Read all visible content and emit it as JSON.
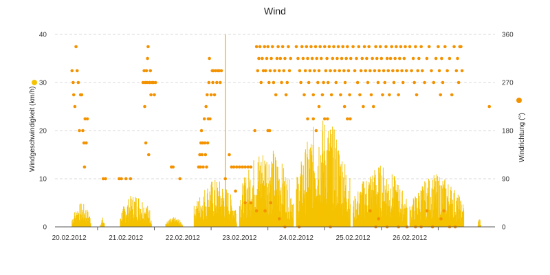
{
  "chart_data": {
    "type": "bar+scatter",
    "title": "Wind",
    "x_categories": [
      "20.02.2012",
      "21.02.2012",
      "22.02.2012",
      "23.02.2012",
      "24.02.2012",
      "25.02.2012",
      "26.02.2012"
    ],
    "x_range_days": [
      19.75,
      27.5
    ],
    "y_left": {
      "label": "Windgeschwindigkeit (km/h)",
      "ylim": [
        0,
        40
      ],
      "ticks": [
        "0",
        "10",
        "20",
        "30",
        "40"
      ],
      "color": "#f5c200"
    },
    "y_right": {
      "label": "Windrichtung (°)",
      "ylim": [
        0,
        360
      ],
      "ticks": [
        "0",
        "90",
        "180",
        "270",
        "360"
      ],
      "color": "#f39200"
    },
    "series": [
      {
        "name": "Windgeschwindigkeit",
        "type": "bar",
        "axis": "left",
        "color": "#f5c200",
        "note": "dense half-hourly gust bars; approximate daily envelopes",
        "segments": [
          {
            "start": 20.05,
            "end": 20.38,
            "max": 5
          },
          {
            "start": 20.55,
            "end": 20.62,
            "max": 2
          },
          {
            "start": 20.9,
            "end": 21.45,
            "max": 7
          },
          {
            "start": 21.7,
            "end": 22.0,
            "max": 2
          },
          {
            "start": 22.2,
            "end": 22.95,
            "max": 10
          },
          {
            "start": 23.0,
            "end": 23.95,
            "max": 17
          },
          {
            "start": 24.0,
            "end": 24.95,
            "max": 23
          },
          {
            "start": 25.0,
            "end": 25.95,
            "max": 13
          },
          {
            "start": 26.0,
            "end": 26.95,
            "max": 11
          },
          {
            "start": 27.2,
            "end": 27.25,
            "max": 2
          }
        ],
        "spike": {
          "x": 22.75,
          "value": 40
        }
      },
      {
        "name": "Windrichtung",
        "type": "scatter",
        "axis": "right",
        "color": "#f39200",
        "note": "wind direction samples, quantised to ~22.5° steps",
        "points": [
          [
            20.05,
            292
          ],
          [
            20.07,
            270
          ],
          [
            20.08,
            247
          ],
          [
            20.1,
            225
          ],
          [
            20.12,
            337
          ],
          [
            20.14,
            292
          ],
          [
            20.16,
            270
          ],
          [
            20.18,
            180
          ],
          [
            20.2,
            247
          ],
          [
            20.22,
            247
          ],
          [
            20.24,
            180
          ],
          [
            20.26,
            157
          ],
          [
            20.27,
            112
          ],
          [
            20.28,
            202
          ],
          [
            20.3,
            157
          ],
          [
            20.32,
            202
          ],
          [
            20.6,
            90
          ],
          [
            20.64,
            90
          ],
          [
            20.88,
            90
          ],
          [
            20.92,
            90
          ],
          [
            21.0,
            90
          ],
          [
            21.08,
            90
          ],
          [
            21.3,
            270
          ],
          [
            21.32,
            292
          ],
          [
            21.33,
            225
          ],
          [
            21.34,
            270
          ],
          [
            21.35,
            157
          ],
          [
            21.36,
            292
          ],
          [
            21.37,
            270
          ],
          [
            21.38,
            315
          ],
          [
            21.39,
            337
          ],
          [
            21.4,
            135
          ],
          [
            21.41,
            270
          ],
          [
            21.42,
            270
          ],
          [
            21.43,
            292
          ],
          [
            21.44,
            247
          ],
          [
            21.46,
            270
          ],
          [
            21.48,
            270
          ],
          [
            21.5,
            247
          ],
          [
            21.52,
            270
          ],
          [
            21.8,
            112
          ],
          [
            21.83,
            112
          ],
          [
            21.95,
            90
          ],
          [
            22.28,
            112
          ],
          [
            22.3,
            135
          ],
          [
            22.31,
            112
          ],
          [
            22.32,
            157
          ],
          [
            22.33,
            180
          ],
          [
            22.34,
            135
          ],
          [
            22.35,
            157
          ],
          [
            22.36,
            112
          ],
          [
            22.38,
            202
          ],
          [
            22.39,
            157
          ],
          [
            22.4,
            135
          ],
          [
            22.41,
            225
          ],
          [
            22.42,
            112
          ],
          [
            22.43,
            247
          ],
          [
            22.44,
            157
          ],
          [
            22.45,
            202
          ],
          [
            22.46,
            270
          ],
          [
            22.47,
            315
          ],
          [
            22.48,
            202
          ],
          [
            22.5,
            247
          ],
          [
            22.52,
            292
          ],
          [
            22.53,
            270
          ],
          [
            22.54,
            292
          ],
          [
            22.56,
            247
          ],
          [
            22.58,
            292
          ],
          [
            22.6,
            270
          ],
          [
            22.62,
            292
          ],
          [
            22.64,
            292
          ],
          [
            22.66,
            270
          ],
          [
            22.68,
            292
          ],
          [
            22.75,
            90
          ],
          [
            22.82,
            135
          ],
          [
            22.86,
            112
          ],
          [
            22.9,
            112
          ],
          [
            22.93,
            67
          ],
          [
            22.95,
            112
          ],
          [
            23.0,
            112
          ],
          [
            23.05,
            112
          ],
          [
            23.1,
            112
          ],
          [
            23.15,
            112
          ],
          [
            23.2,
            112
          ],
          [
            23.27,
            180
          ],
          [
            23.1,
            45
          ],
          [
            23.2,
            45
          ],
          [
            23.3,
            30
          ],
          [
            23.45,
            30
          ],
          [
            23.55,
            45
          ],
          [
            23.7,
            15
          ],
          [
            23.8,
            0
          ],
          [
            24.05,
            0
          ],
          [
            23.3,
            337
          ],
          [
            23.32,
            292
          ],
          [
            23.34,
            315
          ],
          [
            23.36,
            337
          ],
          [
            23.38,
            270
          ],
          [
            23.4,
            315
          ],
          [
            23.42,
            292
          ],
          [
            23.44,
            337
          ],
          [
            23.46,
            292
          ],
          [
            23.48,
            315
          ],
          [
            23.5,
            337
          ],
          [
            23.52,
            270
          ],
          [
            23.54,
            292
          ],
          [
            23.56,
            315
          ],
          [
            23.58,
            337
          ],
          [
            23.6,
            270
          ],
          [
            23.62,
            292
          ],
          [
            23.64,
            247
          ],
          [
            23.66,
            315
          ],
          [
            23.68,
            337
          ],
          [
            23.7,
            292
          ],
          [
            23.72,
            315
          ],
          [
            23.74,
            270
          ],
          [
            23.76,
            337
          ],
          [
            23.78,
            292
          ],
          [
            23.8,
            315
          ],
          [
            23.82,
            247
          ],
          [
            23.84,
            270
          ],
          [
            23.86,
            337
          ],
          [
            23.88,
            292
          ],
          [
            23.9,
            315
          ],
          [
            23.5,
            180
          ],
          [
            23.53,
            180
          ],
          [
            24.0,
            337
          ],
          [
            24.03,
            315
          ],
          [
            24.06,
            292
          ],
          [
            24.08,
            270
          ],
          [
            24.1,
            337
          ],
          [
            24.12,
            315
          ],
          [
            24.14,
            247
          ],
          [
            24.16,
            292
          ],
          [
            24.18,
            337
          ],
          [
            24.2,
            315
          ],
          [
            24.22,
            270
          ],
          [
            24.24,
            292
          ],
          [
            24.26,
            337
          ],
          [
            24.28,
            315
          ],
          [
            24.3,
            247
          ],
          [
            24.32,
            292
          ],
          [
            24.34,
            337
          ],
          [
            24.36,
            315
          ],
          [
            24.38,
            270
          ],
          [
            24.4,
            292
          ],
          [
            24.42,
            337
          ],
          [
            24.44,
            315
          ],
          [
            24.46,
            247
          ],
          [
            24.48,
            270
          ],
          [
            24.5,
            337
          ],
          [
            24.52,
            292
          ],
          [
            24.54,
            315
          ],
          [
            24.56,
            270
          ],
          [
            24.58,
            337
          ],
          [
            24.6,
            292
          ],
          [
            24.62,
            247
          ],
          [
            24.64,
            315
          ],
          [
            24.66,
            337
          ],
          [
            24.68,
            292
          ],
          [
            24.7,
            270
          ],
          [
            24.72,
            315
          ],
          [
            24.74,
            337
          ],
          [
            24.76,
            292
          ],
          [
            24.78,
            247
          ],
          [
            24.8,
            315
          ],
          [
            24.82,
            337
          ],
          [
            24.84,
            292
          ],
          [
            24.86,
            270
          ],
          [
            24.88,
            315
          ],
          [
            24.9,
            337
          ],
          [
            24.92,
            292
          ],
          [
            24.94,
            247
          ],
          [
            24.96,
            315
          ],
          [
            24.2,
            202
          ],
          [
            24.3,
            202
          ],
          [
            24.35,
            180
          ],
          [
            24.4,
            225
          ],
          [
            24.5,
            202
          ],
          [
            24.55,
            202
          ],
          [
            24.6,
            0
          ],
          [
            24.85,
            225
          ],
          [
            24.9,
            202
          ],
          [
            24.95,
            202
          ],
          [
            25.0,
            337
          ],
          [
            25.03,
            292
          ],
          [
            25.06,
            315
          ],
          [
            25.08,
            270
          ],
          [
            25.1,
            337
          ],
          [
            25.12,
            247
          ],
          [
            25.14,
            292
          ],
          [
            25.16,
            315
          ],
          [
            25.18,
            225
          ],
          [
            25.2,
            337
          ],
          [
            25.22,
            292
          ],
          [
            25.24,
            315
          ],
          [
            25.26,
            270
          ],
          [
            25.28,
            337
          ],
          [
            25.3,
            292
          ],
          [
            25.32,
            247
          ],
          [
            25.34,
            315
          ],
          [
            25.36,
            225
          ],
          [
            25.38,
            292
          ],
          [
            25.4,
            337
          ],
          [
            25.42,
            315
          ],
          [
            25.44,
            270
          ],
          [
            25.46,
            292
          ],
          [
            25.48,
            337
          ],
          [
            25.5,
            315
          ],
          [
            25.52,
            247
          ],
          [
            25.54,
            292
          ],
          [
            25.56,
            270
          ],
          [
            25.58,
            337
          ],
          [
            25.6,
            315
          ],
          [
            25.62,
            292
          ],
          [
            25.64,
            247
          ],
          [
            25.66,
            315
          ],
          [
            25.68,
            337
          ],
          [
            25.7,
            292
          ],
          [
            25.72,
            270
          ],
          [
            25.74,
            315
          ],
          [
            25.76,
            337
          ],
          [
            25.78,
            292
          ],
          [
            25.8,
            247
          ],
          [
            25.82,
            315
          ],
          [
            25.84,
            337
          ],
          [
            25.86,
            292
          ],
          [
            25.88,
            270
          ],
          [
            25.9,
            315
          ],
          [
            25.92,
            337
          ],
          [
            25.94,
            292
          ],
          [
            25.3,
            30
          ],
          [
            25.4,
            0
          ],
          [
            25.45,
            15
          ],
          [
            25.6,
            0
          ],
          [
            25.8,
            0
          ],
          [
            25.95,
            0
          ],
          [
            26.0,
            337
          ],
          [
            26.03,
            292
          ],
          [
            26.06,
            315
          ],
          [
            26.08,
            270
          ],
          [
            26.1,
            337
          ],
          [
            26.12,
            247
          ],
          [
            26.14,
            292
          ],
          [
            26.16,
            315
          ],
          [
            26.2,
            337
          ],
          [
            26.22,
            292
          ],
          [
            26.26,
            270
          ],
          [
            26.3,
            315
          ],
          [
            26.34,
            337
          ],
          [
            26.38,
            292
          ],
          [
            26.42,
            270
          ],
          [
            26.46,
            315
          ],
          [
            26.5,
            337
          ],
          [
            26.52,
            292
          ],
          [
            26.54,
            247
          ],
          [
            26.56,
            315
          ],
          [
            26.58,
            270
          ],
          [
            26.62,
            337
          ],
          [
            26.66,
            292
          ],
          [
            26.7,
            315
          ],
          [
            26.74,
            247
          ],
          [
            26.78,
            337
          ],
          [
            26.82,
            292
          ],
          [
            26.84,
            315
          ],
          [
            26.86,
            270
          ],
          [
            26.88,
            337
          ],
          [
            26.9,
            337
          ],
          [
            26.92,
            292
          ],
          [
            26.1,
            0
          ],
          [
            26.2,
            0
          ],
          [
            26.3,
            30
          ],
          [
            26.4,
            0
          ],
          [
            26.55,
            15
          ],
          [
            26.6,
            30
          ],
          [
            26.7,
            0
          ],
          [
            26.8,
            0
          ],
          [
            27.4,
            225
          ]
        ]
      }
    ],
    "grid": "horizontal dashed",
    "legend": "none (axis-colour markers on both sides)"
  }
}
